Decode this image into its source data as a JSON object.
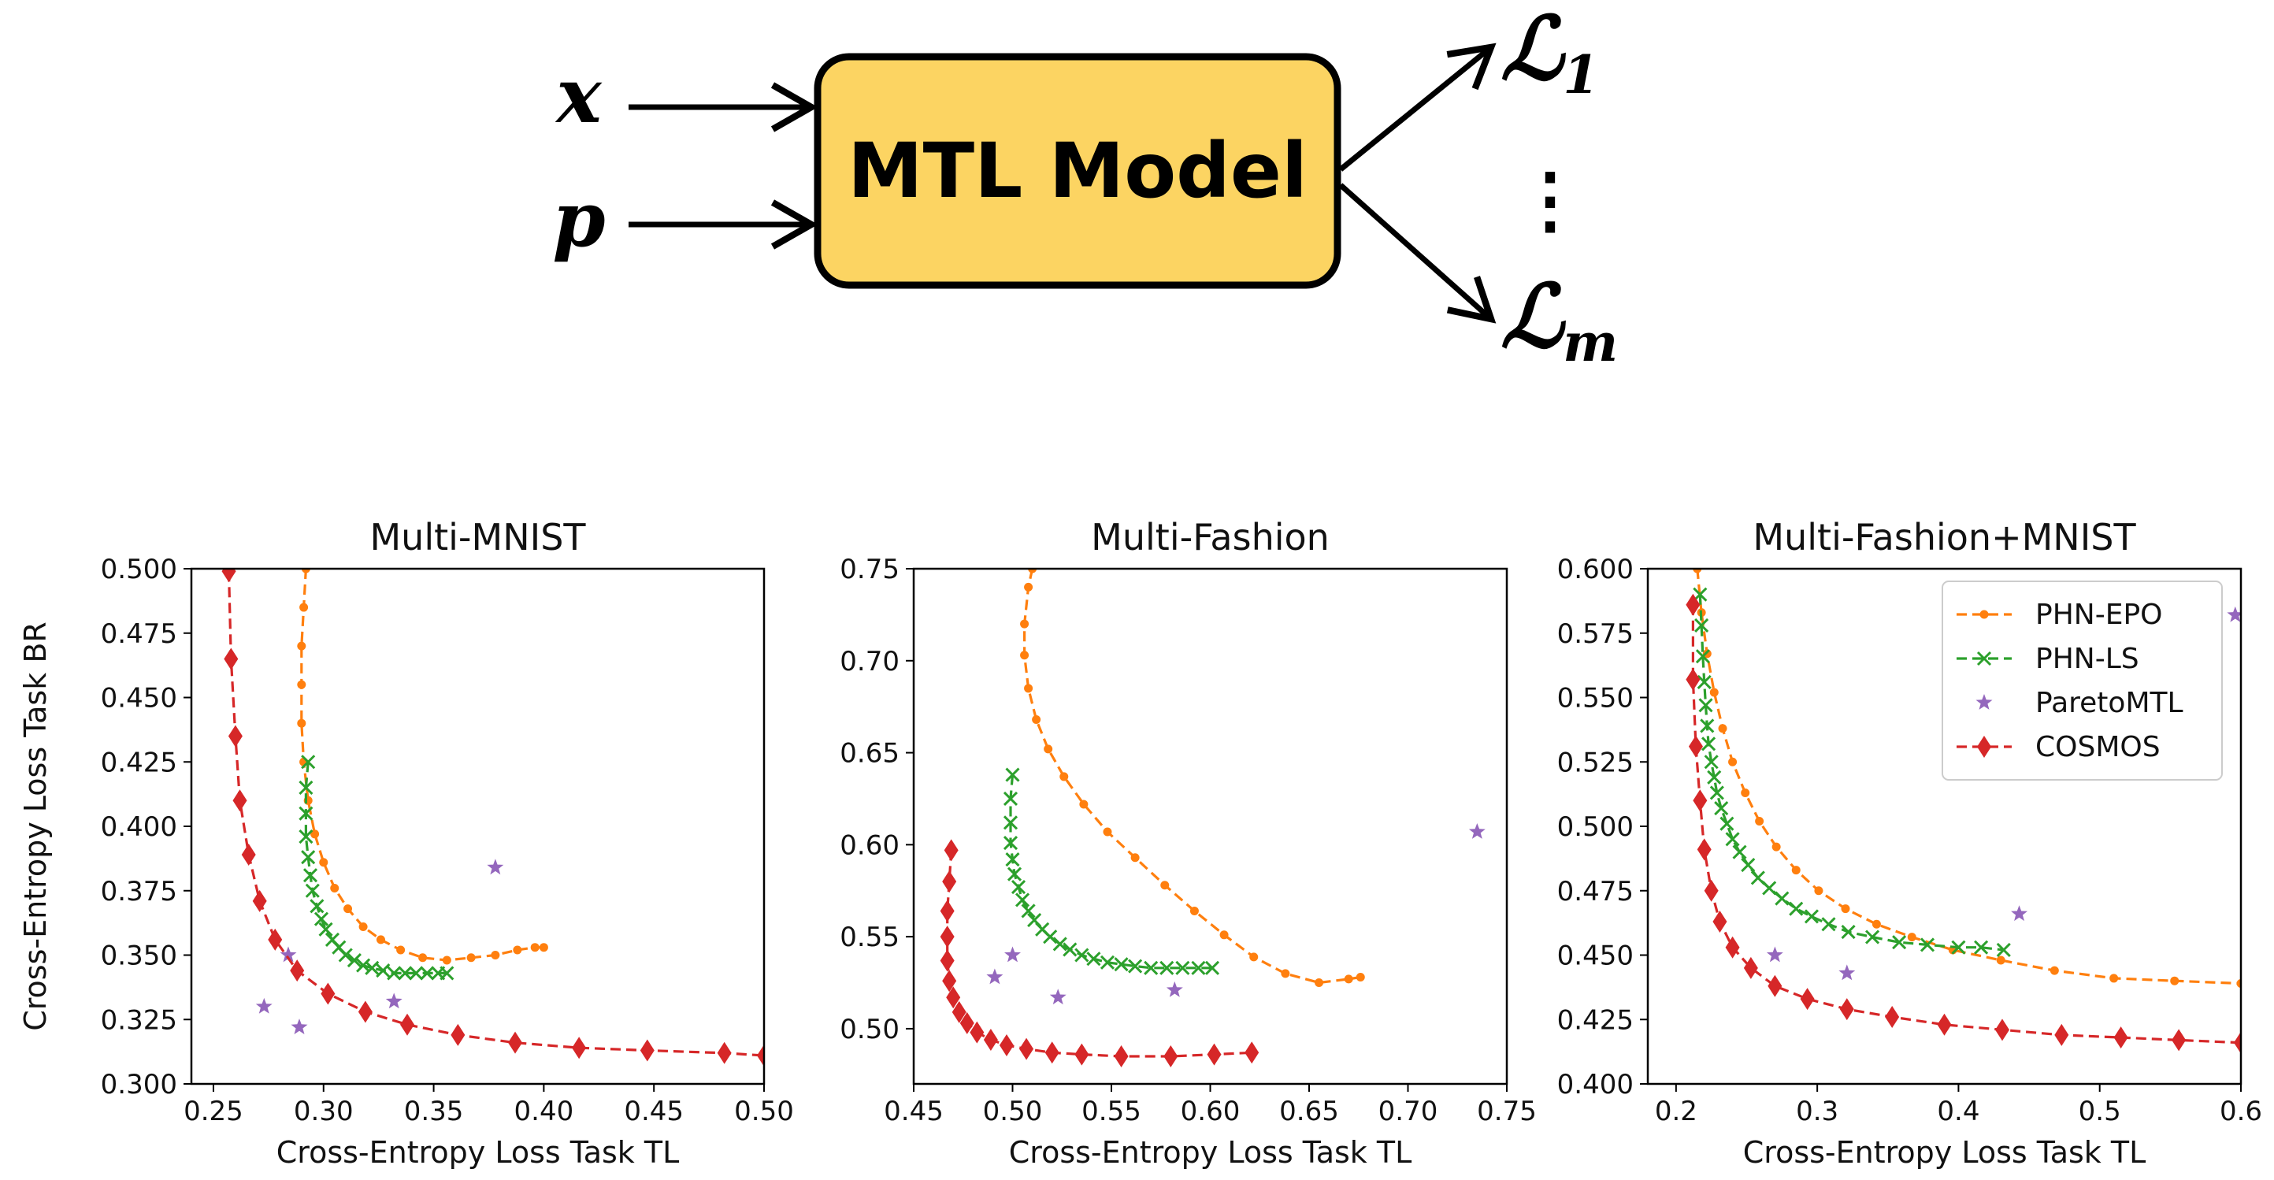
{
  "diagram": {
    "inputs": [
      "x",
      "p"
    ],
    "model_label": "MTL Model",
    "outputs": [
      "ℒ",
      "ℒ"
    ],
    "output_subscripts": [
      "1",
      "m"
    ],
    "ellipsis": "⋮",
    "colors": {
      "box_fill": "#fcd462",
      "box_stroke": "#000000"
    }
  },
  "legend": {
    "entries": [
      "PHN-EPO",
      "PHN-LS",
      "ParetoMTL",
      "COSMOS"
    ]
  },
  "colors": {
    "PHN-EPO": "#ff7f0e",
    "PHN-LS": "#2ca02c",
    "ParetoMTL": "#9467bd",
    "COSMOS": "#d62728"
  },
  "chart_data": [
    {
      "type": "scatter",
      "title": "Multi-MNIST",
      "xlabel": "Cross-Entropy Loss Task TL",
      "ylabel": "Cross-Entropy Loss Task BR",
      "xlim": [
        0.24,
        0.5
      ],
      "ylim": [
        0.3,
        0.5
      ],
      "xticks": [
        "0.25",
        "0.30",
        "0.35",
        "0.40",
        "0.45",
        "0.50"
      ],
      "yticks": [
        "0.300",
        "0.325",
        "0.350",
        "0.375",
        "0.400",
        "0.425",
        "0.450",
        "0.475",
        "0.500"
      ],
      "xtick_values": [
        0.25,
        0.3,
        0.35,
        0.4,
        0.45,
        0.5
      ],
      "ytick_values": [
        0.3,
        0.325,
        0.35,
        0.375,
        0.4,
        0.425,
        0.45,
        0.475,
        0.5
      ],
      "series": [
        {
          "name": "PHN-EPO",
          "marker": "dot",
          "points": [
            [
              0.292,
              0.5
            ],
            [
              0.291,
              0.485
            ],
            [
              0.29,
              0.47
            ],
            [
              0.29,
              0.455
            ],
            [
              0.29,
              0.44
            ],
            [
              0.291,
              0.425
            ],
            [
              0.293,
              0.41
            ],
            [
              0.296,
              0.397
            ],
            [
              0.3,
              0.386
            ],
            [
              0.305,
              0.376
            ],
            [
              0.311,
              0.368
            ],
            [
              0.318,
              0.361
            ],
            [
              0.326,
              0.356
            ],
            [
              0.335,
              0.352
            ],
            [
              0.345,
              0.349
            ],
            [
              0.356,
              0.348
            ],
            [
              0.367,
              0.349
            ],
            [
              0.378,
              0.35
            ],
            [
              0.388,
              0.352
            ],
            [
              0.396,
              0.353
            ],
            [
              0.4,
              0.353
            ]
          ]
        },
        {
          "name": "PHN-LS",
          "marker": "x",
          "points": [
            [
              0.293,
              0.425
            ],
            [
              0.292,
              0.415
            ],
            [
              0.292,
              0.405
            ],
            [
              0.292,
              0.396
            ],
            [
              0.293,
              0.388
            ],
            [
              0.294,
              0.381
            ],
            [
              0.295,
              0.375
            ],
            [
              0.297,
              0.369
            ],
            [
              0.299,
              0.364
            ],
            [
              0.301,
              0.36
            ],
            [
              0.304,
              0.356
            ],
            [
              0.307,
              0.353
            ],
            [
              0.31,
              0.35
            ],
            [
              0.314,
              0.348
            ],
            [
              0.318,
              0.346
            ],
            [
              0.322,
              0.345
            ],
            [
              0.327,
              0.344
            ],
            [
              0.332,
              0.343
            ],
            [
              0.337,
              0.343
            ],
            [
              0.342,
              0.343
            ],
            [
              0.347,
              0.343
            ],
            [
              0.352,
              0.343
            ],
            [
              0.356,
              0.343
            ]
          ]
        },
        {
          "name": "ParetoMTL",
          "marker": "star",
          "points": [
            [
              0.273,
              0.33
            ],
            [
              0.284,
              0.35
            ],
            [
              0.289,
              0.322
            ],
            [
              0.332,
              0.332
            ],
            [
              0.378,
              0.384
            ]
          ]
        },
        {
          "name": "COSMOS",
          "marker": "diamond",
          "points": [
            [
              0.257,
              0.499
            ],
            [
              0.258,
              0.465
            ],
            [
              0.26,
              0.435
            ],
            [
              0.262,
              0.41
            ],
            [
              0.266,
              0.389
            ],
            [
              0.271,
              0.371
            ],
            [
              0.278,
              0.356
            ],
            [
              0.288,
              0.344
            ],
            [
              0.302,
              0.335
            ],
            [
              0.319,
              0.328
            ],
            [
              0.338,
              0.323
            ],
            [
              0.361,
              0.319
            ],
            [
              0.387,
              0.316
            ],
            [
              0.416,
              0.314
            ],
            [
              0.447,
              0.313
            ],
            [
              0.482,
              0.312
            ],
            [
              0.5,
              0.311
            ]
          ]
        }
      ]
    },
    {
      "type": "scatter",
      "title": "Multi-Fashion",
      "xlabel": "Cross-Entropy Loss Task TL",
      "ylabel": "",
      "xlim": [
        0.45,
        0.75
      ],
      "ylim": [
        0.47,
        0.75
      ],
      "xticks": [
        "0.45",
        "0.50",
        "0.55",
        "0.60",
        "0.65",
        "0.70",
        "0.75"
      ],
      "yticks": [
        "0.50",
        "0.55",
        "0.60",
        "0.65",
        "0.70",
        "0.75"
      ],
      "xtick_values": [
        0.45,
        0.5,
        0.55,
        0.6,
        0.65,
        0.7,
        0.75
      ],
      "ytick_values": [
        0.5,
        0.55,
        0.6,
        0.65,
        0.7,
        0.75
      ],
      "series": [
        {
          "name": "PHN-EPO",
          "marker": "dot",
          "points": [
            [
              0.51,
              0.75
            ],
            [
              0.508,
              0.74
            ],
            [
              0.506,
              0.72
            ],
            [
              0.506,
              0.703
            ],
            [
              0.508,
              0.685
            ],
            [
              0.512,
              0.668
            ],
            [
              0.518,
              0.652
            ],
            [
              0.526,
              0.637
            ],
            [
              0.536,
              0.622
            ],
            [
              0.548,
              0.607
            ],
            [
              0.562,
              0.593
            ],
            [
              0.577,
              0.578
            ],
            [
              0.592,
              0.564
            ],
            [
              0.607,
              0.551
            ],
            [
              0.622,
              0.539
            ],
            [
              0.638,
              0.53
            ],
            [
              0.655,
              0.525
            ],
            [
              0.67,
              0.527
            ],
            [
              0.676,
              0.528
            ]
          ]
        },
        {
          "name": "PHN-LS",
          "marker": "x",
          "points": [
            [
              0.5,
              0.638
            ],
            [
              0.499,
              0.625
            ],
            [
              0.499,
              0.612
            ],
            [
              0.499,
              0.601
            ],
            [
              0.5,
              0.592
            ],
            [
              0.501,
              0.584
            ],
            [
              0.503,
              0.577
            ],
            [
              0.505,
              0.57
            ],
            [
              0.508,
              0.564
            ],
            [
              0.511,
              0.559
            ],
            [
              0.515,
              0.554
            ],
            [
              0.519,
              0.55
            ],
            [
              0.524,
              0.546
            ],
            [
              0.529,
              0.543
            ],
            [
              0.535,
              0.54
            ],
            [
              0.541,
              0.538
            ],
            [
              0.548,
              0.536
            ],
            [
              0.555,
              0.535
            ],
            [
              0.562,
              0.534
            ],
            [
              0.57,
              0.533
            ],
            [
              0.578,
              0.533
            ],
            [
              0.586,
              0.533
            ],
            [
              0.594,
              0.533
            ],
            [
              0.601,
              0.533
            ]
          ]
        },
        {
          "name": "ParetoMTL",
          "marker": "star",
          "points": [
            [
              0.491,
              0.528
            ],
            [
              0.5,
              0.54
            ],
            [
              0.523,
              0.517
            ],
            [
              0.582,
              0.521
            ],
            [
              0.735,
              0.607
            ]
          ]
        },
        {
          "name": "COSMOS",
          "marker": "diamond",
          "points": [
            [
              0.469,
              0.597
            ],
            [
              0.468,
              0.58
            ],
            [
              0.467,
              0.564
            ],
            [
              0.467,
              0.55
            ],
            [
              0.467,
              0.537
            ],
            [
              0.468,
              0.526
            ],
            [
              0.47,
              0.517
            ],
            [
              0.473,
              0.509
            ],
            [
              0.477,
              0.503
            ],
            [
              0.482,
              0.498
            ],
            [
              0.489,
              0.494
            ],
            [
              0.497,
              0.491
            ],
            [
              0.507,
              0.489
            ],
            [
              0.52,
              0.487
            ],
            [
              0.535,
              0.486
            ],
            [
              0.555,
              0.485
            ],
            [
              0.58,
              0.485
            ],
            [
              0.602,
              0.486
            ],
            [
              0.621,
              0.487
            ]
          ]
        }
      ]
    },
    {
      "type": "scatter",
      "title": "Multi-Fashion+MNIST",
      "xlabel": "Cross-Entropy Loss Task TL",
      "ylabel": "",
      "xlim": [
        0.18,
        0.6
      ],
      "ylim": [
        0.4,
        0.6
      ],
      "xticks": [
        "0.2",
        "0.3",
        "0.4",
        "0.5",
        "0.6"
      ],
      "yticks": [
        "0.400",
        "0.425",
        "0.450",
        "0.475",
        "0.500",
        "0.525",
        "0.550",
        "0.575",
        "0.600"
      ],
      "xtick_values": [
        0.2,
        0.3,
        0.4,
        0.5,
        0.6
      ],
      "ytick_values": [
        0.4,
        0.425,
        0.45,
        0.475,
        0.5,
        0.525,
        0.55,
        0.575,
        0.6
      ],
      "series": [
        {
          "name": "PHN-EPO",
          "marker": "dot",
          "points": [
            [
              0.215,
              0.6
            ],
            [
              0.218,
              0.583
            ],
            [
              0.222,
              0.567
            ],
            [
              0.227,
              0.552
            ],
            [
              0.233,
              0.538
            ],
            [
              0.24,
              0.525
            ],
            [
              0.249,
              0.513
            ],
            [
              0.259,
              0.502
            ],
            [
              0.271,
              0.492
            ],
            [
              0.285,
              0.483
            ],
            [
              0.301,
              0.475
            ],
            [
              0.32,
              0.468
            ],
            [
              0.342,
              0.462
            ],
            [
              0.367,
              0.457
            ],
            [
              0.396,
              0.452
            ],
            [
              0.43,
              0.448
            ],
            [
              0.468,
              0.444
            ],
            [
              0.51,
              0.441
            ],
            [
              0.553,
              0.44
            ],
            [
              0.6,
              0.439
            ]
          ]
        },
        {
          "name": "PHN-LS",
          "marker": "x",
          "points": [
            [
              0.217,
              0.59
            ],
            [
              0.218,
              0.578
            ],
            [
              0.219,
              0.566
            ],
            [
              0.22,
              0.556
            ],
            [
              0.221,
              0.547
            ],
            [
              0.222,
              0.539
            ],
            [
              0.223,
              0.532
            ],
            [
              0.225,
              0.525
            ],
            [
              0.227,
              0.519
            ],
            [
              0.229,
              0.513
            ],
            [
              0.232,
              0.507
            ],
            [
              0.236,
              0.501
            ],
            [
              0.24,
              0.495
            ],
            [
              0.245,
              0.49
            ],
            [
              0.251,
              0.485
            ],
            [
              0.258,
              0.48
            ],
            [
              0.266,
              0.476
            ],
            [
              0.275,
              0.472
            ],
            [
              0.285,
              0.468
            ],
            [
              0.296,
              0.465
            ],
            [
              0.308,
              0.462
            ],
            [
              0.322,
              0.459
            ],
            [
              0.339,
              0.457
            ],
            [
              0.358,
              0.455
            ],
            [
              0.378,
              0.454
            ],
            [
              0.4,
              0.453
            ],
            [
              0.416,
              0.453
            ],
            [
              0.432,
              0.452
            ]
          ]
        },
        {
          "name": "ParetoMTL",
          "marker": "star",
          "points": [
            [
              0.27,
              0.45
            ],
            [
              0.321,
              0.443
            ],
            [
              0.443,
              0.466
            ],
            [
              0.596,
              0.582
            ]
          ]
        },
        {
          "name": "COSMOS",
          "marker": "diamond",
          "points": [
            [
              0.212,
              0.586
            ],
            [
              0.212,
              0.557
            ],
            [
              0.214,
              0.531
            ],
            [
              0.217,
              0.51
            ],
            [
              0.22,
              0.491
            ],
            [
              0.225,
              0.475
            ],
            [
              0.231,
              0.463
            ],
            [
              0.24,
              0.453
            ],
            [
              0.253,
              0.445
            ],
            [
              0.27,
              0.438
            ],
            [
              0.293,
              0.433
            ],
            [
              0.321,
              0.429
            ],
            [
              0.353,
              0.426
            ],
            [
              0.39,
              0.423
            ],
            [
              0.431,
              0.421
            ],
            [
              0.473,
              0.419
            ],
            [
              0.515,
              0.418
            ],
            [
              0.556,
              0.417
            ],
            [
              0.6,
              0.416
            ]
          ]
        }
      ]
    }
  ]
}
